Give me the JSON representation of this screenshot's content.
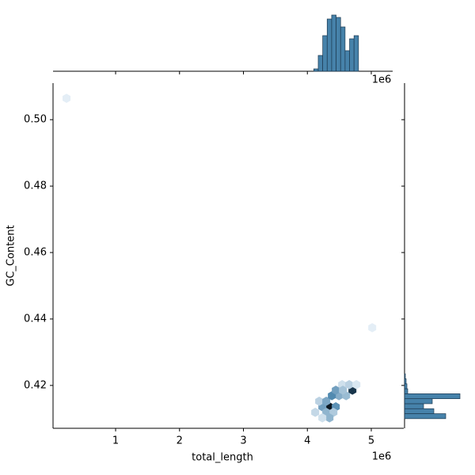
{
  "chart_data": {
    "type": "hexbin",
    "xlabel": "total_length",
    "ylabel": "GC_Content",
    "x_offset_label": "1e6",
    "xlim": [
      21000,
      5508000
    ],
    "ylim": [
      0.4071,
      0.511
    ],
    "xticks": [
      {
        "value": 1000000,
        "label": "1"
      },
      {
        "value": 2000000,
        "label": "2"
      },
      {
        "value": 3000000,
        "label": "3"
      },
      {
        "value": 4000000,
        "label": "4"
      },
      {
        "value": 5000000,
        "label": "5"
      }
    ],
    "yticks": [
      0.42,
      0.44,
      0.46,
      0.48,
      {
        "value": 0.5,
        "label": "0.50"
      }
    ],
    "color": "#3274a1",
    "hexbins": {
      "x": [
        4346000,
        4705000,
        4234000,
        4445000,
        4123000,
        4296000,
        4408000,
        4185000,
        4296000,
        4494000,
        4606000,
        4544000,
        4655000,
        4767000,
        4383000,
        4445000,
        4556000,
        4346000,
        4234000,
        232000,
        5015000
      ],
      "y": [
        0.41357,
        0.41857,
        0.41357,
        0.41357,
        0.4119,
        0.4119,
        0.4119,
        0.41524,
        0.41524,
        0.4169,
        0.4169,
        0.42024,
        0.42024,
        0.42024,
        0.4169,
        0.41857,
        0.41857,
        0.41024,
        0.41024,
        0.50643,
        0.43738
      ],
      "counts": [
        30,
        26,
        12,
        14,
        4,
        9,
        6,
        5,
        11,
        10,
        8,
        3,
        5,
        2,
        15,
        12,
        7,
        9,
        3,
        1,
        1
      ]
    },
    "x_hist": {
      "bins": [
        4100000,
        4170000,
        4240000,
        4310000,
        4380000,
        4450000,
        4520000,
        4590000,
        4660000,
        4730000,
        4800000
      ],
      "counts": [
        3,
        20,
        45,
        66,
        71,
        68,
        56,
        26,
        41,
        45
      ]
    },
    "y_hist": {
      "bins": [
        0.41,
        0.4115,
        0.413,
        0.4145,
        0.416,
        0.4175,
        0.419,
        0.4205,
        0.422,
        0.4235
      ],
      "counts": [
        52,
        37,
        24,
        35,
        70,
        4,
        3,
        2,
        1
      ]
    }
  }
}
